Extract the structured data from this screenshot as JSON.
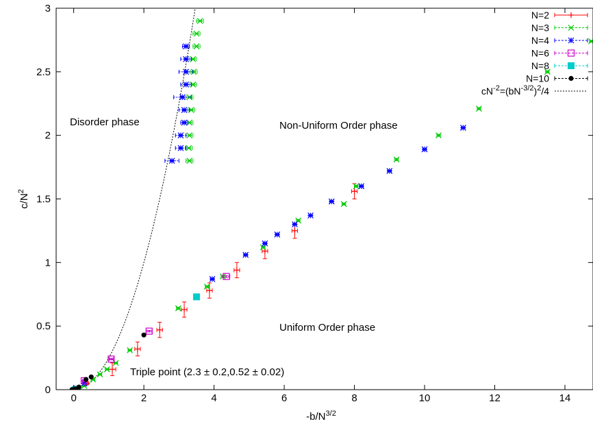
{
  "chart_data": {
    "type": "scatter",
    "title": "",
    "xlabel": {
      "base": "-b/N",
      "sup": "3/2"
    },
    "ylabel": {
      "base": "c/N",
      "sup": "2"
    },
    "xlim": [
      -0.5,
      14.8
    ],
    "ylim": [
      0,
      3
    ],
    "xticks": [
      0,
      2,
      4,
      6,
      8,
      10,
      12,
      14
    ],
    "xtick_labels": [
      "0",
      "2",
      "4",
      "6",
      "8",
      "10",
      "12",
      "14"
    ],
    "yticks": [
      0,
      0.5,
      1,
      1.5,
      2,
      2.5,
      3
    ],
    "ytick_labels": [
      "0",
      "0.5",
      "1",
      "1.5",
      "2",
      "2.5",
      "3"
    ],
    "grid": false,
    "legend_position": "top-right",
    "annotations": {
      "disorder": "Disorder phase",
      "nonuniform": "Non-Uniform Order phase",
      "uniform": "Uniform Order phase",
      "triple": "Triple point   (2.3 ± 0.2,0.52 ± 0.02)"
    },
    "series": [
      {
        "name": "N=2",
        "color": "#ff0000",
        "marker": "plus",
        "points": [
          {
            "x": 0.0,
            "y": 0.0,
            "xerr": 0.05,
            "yerr": 0.005
          },
          {
            "x": 0.38,
            "y": 0.05,
            "xerr": 0.04,
            "yerr": 0.01
          },
          {
            "x": 1.1,
            "y": 0.16,
            "xerr": 0.1,
            "yerr": 0.05
          },
          {
            "x": 1.82,
            "y": 0.32,
            "xerr": 0.08,
            "yerr": 0.055
          },
          {
            "x": 2.45,
            "y": 0.47,
            "xerr": 0.08,
            "yerr": 0.06
          },
          {
            "x": 3.15,
            "y": 0.63,
            "xerr": 0.08,
            "yerr": 0.06
          },
          {
            "x": 3.87,
            "y": 0.78,
            "xerr": 0.08,
            "yerr": 0.06
          },
          {
            "x": 4.65,
            "y": 0.94,
            "xerr": 0.08,
            "yerr": 0.06
          },
          {
            "x": 5.45,
            "y": 1.09,
            "xerr": 0.08,
            "yerr": 0.06
          },
          {
            "x": 6.3,
            "y": 1.25,
            "xerr": 0.08,
            "yerr": 0.06
          },
          {
            "x": 8.0,
            "y": 1.56,
            "xerr": 0.08,
            "yerr": 0.06
          }
        ]
      },
      {
        "name": "N=3",
        "color": "#00cc00",
        "marker": "x",
        "points": [
          {
            "x": 0.02,
            "y": 0.0,
            "xerr": 0.05,
            "yerr": 0.004
          },
          {
            "x": 0.15,
            "y": 0.01,
            "xerr": 0.05,
            "yerr": 0.004
          },
          {
            "x": 0.3,
            "y": 0.03,
            "xerr": 0.05,
            "yerr": 0.005
          },
          {
            "x": 0.55,
            "y": 0.08,
            "xerr": 0.05,
            "yerr": 0.006
          },
          {
            "x": 0.75,
            "y": 0.12,
            "xerr": 0.05,
            "yerr": 0.006
          },
          {
            "x": 0.95,
            "y": 0.16,
            "xerr": 0.05,
            "yerr": 0.006
          },
          {
            "x": 1.2,
            "y": 0.21,
            "xerr": 0.05,
            "yerr": 0.006
          },
          {
            "x": 1.6,
            "y": 0.31,
            "xerr": 0.05,
            "yerr": 0.006
          },
          {
            "x": 2.98,
            "y": 0.64,
            "xerr": 0.05,
            "yerr": 0.008
          },
          {
            "x": 3.8,
            "y": 0.81,
            "xerr": 0.05,
            "yerr": 0.008
          },
          {
            "x": 4.25,
            "y": 0.89,
            "xerr": 0.05,
            "yerr": 0.008
          },
          {
            "x": 5.4,
            "y": 1.12,
            "xerr": 0.05,
            "yerr": 0.008
          },
          {
            "x": 6.4,
            "y": 1.33,
            "xerr": 0.05,
            "yerr": 0.008
          },
          {
            "x": 7.7,
            "y": 1.46,
            "xerr": 0.05,
            "yerr": 0.008
          },
          {
            "x": 8.05,
            "y": 1.6,
            "xerr": 0.05,
            "yerr": 0.008
          },
          {
            "x": 9.2,
            "y": 1.81,
            "xerr": 0.05,
            "yerr": 0.008
          },
          {
            "x": 10.4,
            "y": 2.0,
            "xerr": 0.05,
            "yerr": 0.008
          },
          {
            "x": 11.55,
            "y": 2.21,
            "xerr": 0.05,
            "yerr": 0.008
          },
          {
            "x": 13.5,
            "y": 2.5,
            "xerr": 0.05,
            "yerr": 0.008
          },
          {
            "x": 14.75,
            "y": 2.74,
            "xerr": 0.05,
            "yerr": 0.008
          },
          {
            "x": 3.3,
            "y": 1.8,
            "xerr": 0.1,
            "yerr": 0.005
          },
          {
            "x": 3.28,
            "y": 1.9,
            "xerr": 0.1,
            "yerr": 0.005
          },
          {
            "x": 3.3,
            "y": 2.0,
            "xerr": 0.1,
            "yerr": 0.005
          },
          {
            "x": 3.3,
            "y": 2.1,
            "xerr": 0.1,
            "yerr": 0.005
          },
          {
            "x": 3.35,
            "y": 2.2,
            "xerr": 0.1,
            "yerr": 0.005
          },
          {
            "x": 3.3,
            "y": 2.3,
            "xerr": 0.1,
            "yerr": 0.005
          },
          {
            "x": 3.4,
            "y": 2.4,
            "xerr": 0.1,
            "yerr": 0.005
          },
          {
            "x": 3.42,
            "y": 2.5,
            "xerr": 0.1,
            "yerr": 0.005
          },
          {
            "x": 3.4,
            "y": 2.6,
            "xerr": 0.1,
            "yerr": 0.005
          },
          {
            "x": 3.5,
            "y": 2.7,
            "xerr": 0.1,
            "yerr": 0.005
          },
          {
            "x": 3.5,
            "y": 2.8,
            "xerr": 0.1,
            "yerr": 0.005
          },
          {
            "x": 3.6,
            "y": 2.9,
            "xerr": 0.1,
            "yerr": 0.005
          }
        ]
      },
      {
        "name": "N=4",
        "color": "#0000ff",
        "marker": "star",
        "points": [
          {
            "x": 0.1,
            "y": 0.01,
            "xerr": 0.04,
            "yerr": 0.004
          },
          {
            "x": 0.3,
            "y": 0.05,
            "xerr": 0.04,
            "yerr": 0.004
          },
          {
            "x": 3.95,
            "y": 0.87,
            "xerr": 0.05,
            "yerr": 0.006
          },
          {
            "x": 4.9,
            "y": 1.06,
            "xerr": 0.05,
            "yerr": 0.006
          },
          {
            "x": 5.45,
            "y": 1.15,
            "xerr": 0.05,
            "yerr": 0.006
          },
          {
            "x": 5.8,
            "y": 1.22,
            "xerr": 0.05,
            "yerr": 0.006
          },
          {
            "x": 6.3,
            "y": 1.3,
            "xerr": 0.05,
            "yerr": 0.006
          },
          {
            "x": 6.75,
            "y": 1.37,
            "xerr": 0.05,
            "yerr": 0.006
          },
          {
            "x": 7.35,
            "y": 1.48,
            "xerr": 0.05,
            "yerr": 0.006
          },
          {
            "x": 8.2,
            "y": 1.6,
            "xerr": 0.05,
            "yerr": 0.006
          },
          {
            "x": 9.0,
            "y": 1.72,
            "xerr": 0.05,
            "yerr": 0.006
          },
          {
            "x": 10.0,
            "y": 1.89,
            "xerr": 0.05,
            "yerr": 0.006
          },
          {
            "x": 11.1,
            "y": 2.06,
            "xerr": 0.05,
            "yerr": 0.006
          },
          {
            "x": 2.8,
            "y": 1.8,
            "xerr": 0.2,
            "yerr": 0.005
          },
          {
            "x": 3.05,
            "y": 1.9,
            "xerr": 0.15,
            "yerr": 0.005
          },
          {
            "x": 3.05,
            "y": 2.0,
            "xerr": 0.15,
            "yerr": 0.005
          },
          {
            "x": 3.15,
            "y": 2.1,
            "xerr": 0.1,
            "yerr": 0.005
          },
          {
            "x": 3.15,
            "y": 2.2,
            "xerr": 0.15,
            "yerr": 0.005
          },
          {
            "x": 3.1,
            "y": 2.3,
            "xerr": 0.25,
            "yerr": 0.005
          },
          {
            "x": 3.2,
            "y": 2.4,
            "xerr": 0.15,
            "yerr": 0.005
          },
          {
            "x": 3.2,
            "y": 2.5,
            "xerr": 0.2,
            "yerr": 0.005
          },
          {
            "x": 3.2,
            "y": 2.6,
            "xerr": 0.15,
            "yerr": 0.005
          },
          {
            "x": 3.2,
            "y": 2.7,
            "xerr": 0.1,
            "yerr": 0.005
          }
        ]
      },
      {
        "name": "N=6",
        "color": "#cc00cc",
        "marker": "square-open",
        "points": [
          {
            "x": 0.05,
            "y": 0.0,
            "xerr": 0.03,
            "yerr": 0.004
          },
          {
            "x": 0.3,
            "y": 0.07,
            "xerr": 0.05,
            "yerr": 0.006
          },
          {
            "x": 1.07,
            "y": 0.24,
            "xerr": 0.06,
            "yerr": 0.006
          },
          {
            "x": 2.15,
            "y": 0.46,
            "xerr": 0.08,
            "yerr": 0.006
          },
          {
            "x": 4.35,
            "y": 0.89,
            "xerr": 0.1,
            "yerr": 0.008
          }
        ]
      },
      {
        "name": "N=8",
        "color": "#00cccc",
        "marker": "square-filled",
        "points": [
          {
            "x": 0.05,
            "y": 0.0
          },
          {
            "x": 3.5,
            "y": 0.73
          }
        ]
      },
      {
        "name": "N=10",
        "color": "#000000",
        "marker": "circle-filled",
        "points": [
          {
            "x": -0.05,
            "y": 0.0
          },
          {
            "x": 0.05,
            "y": 0.005
          },
          {
            "x": 0.15,
            "y": 0.02
          },
          {
            "x": 0.35,
            "y": 0.08
          },
          {
            "x": 0.5,
            "y": 0.1
          },
          {
            "x": 2.0,
            "y": 0.43
          }
        ]
      }
    ],
    "curve": {
      "name": "cN^-2=(bN^-3/2)^2/4",
      "label_base": "cN",
      "label_sup1": "-2",
      "label_mid": "=(bN",
      "label_sup2": "-3/2",
      "label_end": ")",
      "label_sup3": "2",
      "label_tail": "/4",
      "color": "#000000",
      "style": "dotted",
      "function": "y = x^2 / 4"
    }
  }
}
